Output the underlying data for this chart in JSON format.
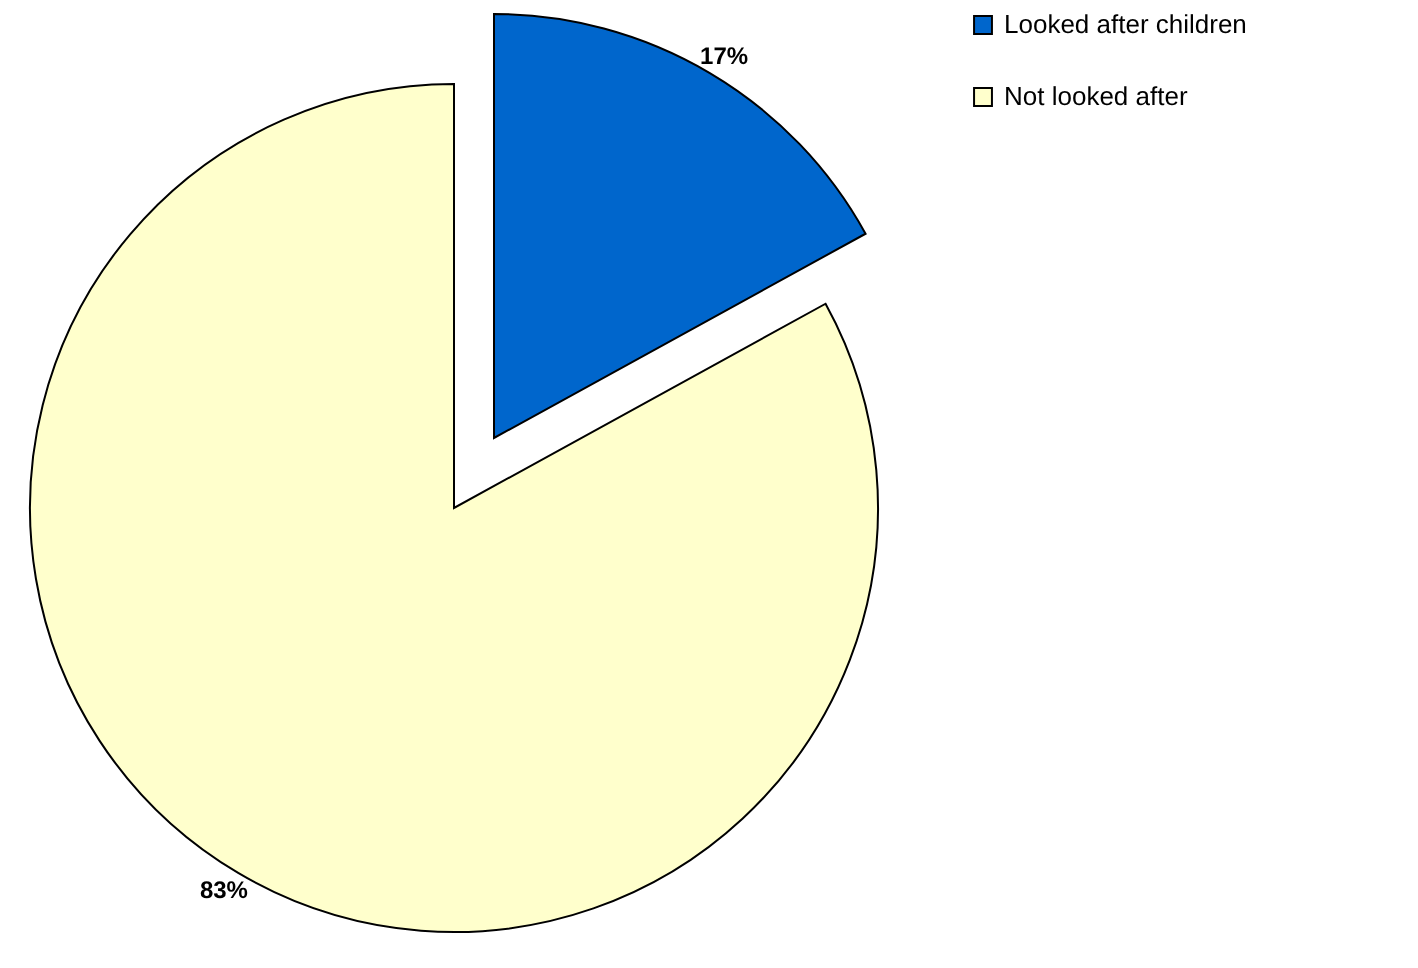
{
  "chart_data": {
    "type": "pie",
    "categories": [
      "Looked after children",
      "Not looked after"
    ],
    "values": [
      17,
      83
    ],
    "colors": [
      "#0066cc",
      "#ffffcc"
    ],
    "data_labels": true,
    "value_labels": [
      "17%",
      "83%"
    ],
    "legend": "right"
  }
}
